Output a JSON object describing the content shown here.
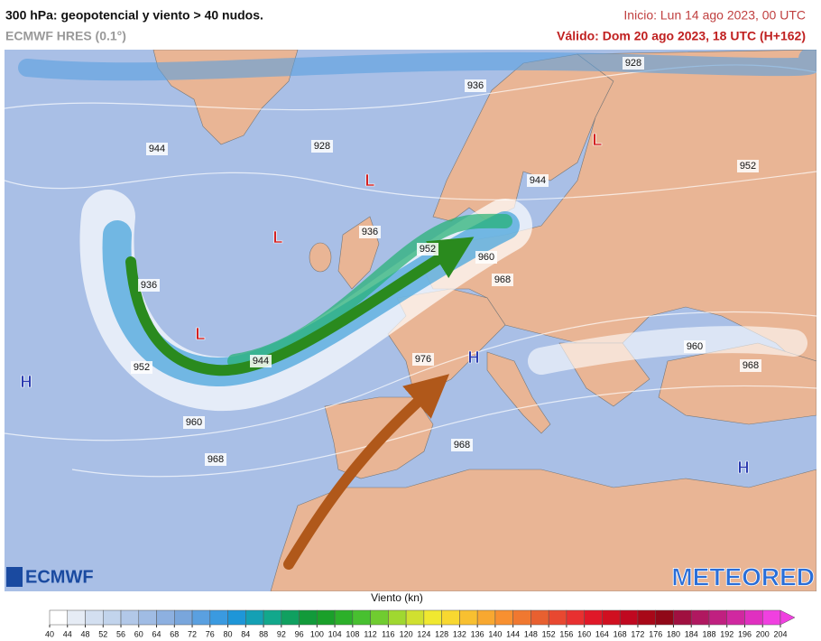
{
  "header": {
    "title": "300 hPa: geopotencial y viento > 40 nudos.",
    "model": "ECMWF HRES (0.1°)",
    "init": "Inicio: Lun 14 ago 2023, 00 UTC",
    "valid": "Válido: Dom 20 ago 2023, 18 UTC (H+162)"
  },
  "map": {
    "contour_labels": [
      928,
      936,
      944,
      928,
      952,
      944,
      936,
      952,
      960,
      968,
      936,
      944,
      952,
      976,
      960,
      968,
      960,
      968,
      968
    ],
    "systems": [
      {
        "label": "L",
        "color": "#d42020"
      },
      {
        "label": "L",
        "color": "#d42020"
      },
      {
        "label": "L",
        "color": "#d42020"
      },
      {
        "label": "L",
        "color": "#d42020"
      },
      {
        "label": "H",
        "color": "#2a3ab0"
      },
      {
        "label": "H",
        "color": "#2a3ab0"
      },
      {
        "label": "H",
        "color": "#2a3ab0"
      }
    ]
  },
  "colorbar": {
    "title": "Viento (kn)",
    "ticks": [
      40,
      44,
      48,
      52,
      56,
      60,
      64,
      68,
      72,
      76,
      80,
      84,
      88,
      92,
      96,
      100,
      104,
      108,
      112,
      116,
      120,
      124,
      128,
      132,
      136,
      140,
      144,
      148,
      152,
      156,
      160,
      164,
      168,
      172,
      176,
      180,
      184,
      188,
      192,
      196,
      200,
      204
    ],
    "colors": [
      "#ffffff",
      "#e6ecf5",
      "#d3dff0",
      "#c2d4ec",
      "#b2c8e8",
      "#a0bce4",
      "#8db0e0",
      "#79a6dc",
      "#5aa0e0",
      "#3a9ae0",
      "#1e96d8",
      "#14a0b4",
      "#12a88c",
      "#10a060",
      "#129a3a",
      "#1aa02a",
      "#2cb02a",
      "#48c030",
      "#70cc30",
      "#a0d830",
      "#d0e030",
      "#f0e830",
      "#f8d830",
      "#f8c030",
      "#f8a830",
      "#f89030",
      "#f07830",
      "#e86030",
      "#e84830",
      "#e83030",
      "#e01828",
      "#d01020",
      "#c00820",
      "#a80818",
      "#900818",
      "#a01040",
      "#b01860",
      "#c02080",
      "#d028a0",
      "#e030c0",
      "#f040e0"
    ]
  },
  "logos": {
    "left": "ECMWF",
    "right": "METEORED"
  }
}
